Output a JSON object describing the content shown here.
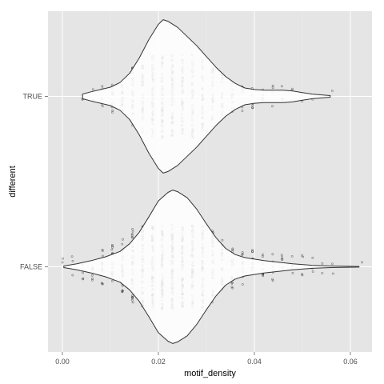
{
  "chart_data": {
    "type": "violin",
    "orientation": "horizontal",
    "title": "",
    "xlabel": "motif_density",
    "ylabel": "different",
    "xlim": [
      -0.003,
      0.0645
    ],
    "x_ticks": [
      0.0,
      0.02,
      0.04,
      0.06
    ],
    "x_tick_labels": [
      "0.00",
      "0.02",
      "0.04",
      "0.06"
    ],
    "categories": [
      "TRUE",
      "FALSE"
    ],
    "grid": true,
    "colors": {
      "panel_background": "#E5E5E5",
      "grid_major": "#FFFFFF",
      "grid_minor": "#F2F2F2",
      "violin_fill": "#FFFFFF",
      "violin_outline": "#333333",
      "points": "#000000"
    },
    "violins": [
      {
        "category": "TRUE",
        "range": [
          0.0042,
          0.0558
        ],
        "profile": [
          [
            0.0042,
            0.03
          ],
          [
            0.006,
            0.06
          ],
          [
            0.008,
            0.09
          ],
          [
            0.01,
            0.12
          ],
          [
            0.012,
            0.18
          ],
          [
            0.014,
            0.3
          ],
          [
            0.016,
            0.5
          ],
          [
            0.018,
            0.74
          ],
          [
            0.02,
            0.94
          ],
          [
            0.021,
            1.0
          ],
          [
            0.022,
            0.98
          ],
          [
            0.024,
            0.9
          ],
          [
            0.026,
            0.78
          ],
          [
            0.028,
            0.66
          ],
          [
            0.03,
            0.52
          ],
          [
            0.032,
            0.38
          ],
          [
            0.034,
            0.26
          ],
          [
            0.036,
            0.17
          ],
          [
            0.038,
            0.11
          ],
          [
            0.04,
            0.09
          ],
          [
            0.042,
            0.08
          ],
          [
            0.044,
            0.08
          ],
          [
            0.046,
            0.08
          ],
          [
            0.048,
            0.07
          ],
          [
            0.05,
            0.05
          ],
          [
            0.052,
            0.03
          ],
          [
            0.054,
            0.02
          ],
          [
            0.0558,
            0.01
          ]
        ]
      },
      {
        "category": "FALSE",
        "range": [
          0.0003,
          0.0618
        ],
        "profile": [
          [
            0.0003,
            0.01
          ],
          [
            0.003,
            0.04
          ],
          [
            0.006,
            0.08
          ],
          [
            0.009,
            0.13
          ],
          [
            0.012,
            0.2
          ],
          [
            0.014,
            0.3
          ],
          [
            0.016,
            0.45
          ],
          [
            0.018,
            0.65
          ],
          [
            0.02,
            0.86
          ],
          [
            0.022,
            0.97
          ],
          [
            0.023,
            1.0
          ],
          [
            0.024,
            0.98
          ],
          [
            0.026,
            0.9
          ],
          [
            0.028,
            0.75
          ],
          [
            0.03,
            0.56
          ],
          [
            0.032,
            0.38
          ],
          [
            0.034,
            0.24
          ],
          [
            0.036,
            0.16
          ],
          [
            0.038,
            0.12
          ],
          [
            0.04,
            0.1
          ],
          [
            0.042,
            0.08
          ],
          [
            0.045,
            0.06
          ],
          [
            0.048,
            0.04
          ],
          [
            0.052,
            0.02
          ],
          [
            0.056,
            0.01
          ],
          [
            0.0618,
            0.004
          ]
        ]
      }
    ],
    "points": [
      {
        "category": "TRUE",
        "x_columns": [
          0.0042,
          0.0063,
          0.0083,
          0.0104,
          0.0125,
          0.0146,
          0.0167,
          0.0188,
          0.0208,
          0.0229,
          0.025,
          0.0271,
          0.0292,
          0.0313,
          0.0333,
          0.0354,
          0.0375,
          0.0396,
          0.0417,
          0.0438,
          0.0458,
          0.0479,
          0.05,
          0.0521,
          0.0563
        ],
        "counts": [
          2,
          3,
          6,
          10,
          16,
          24,
          34,
          44,
          50,
          52,
          48,
          40,
          32,
          24,
          16,
          10,
          8,
          6,
          5,
          4,
          3,
          2,
          2,
          1,
          1
        ]
      },
      {
        "category": "FALSE",
        "x_columns": [
          0.0,
          0.0021,
          0.0042,
          0.0063,
          0.0083,
          0.0104,
          0.0125,
          0.0146,
          0.0167,
          0.0188,
          0.0208,
          0.0229,
          0.025,
          0.0271,
          0.0292,
          0.0313,
          0.0333,
          0.0354,
          0.0375,
          0.0396,
          0.0417,
          0.0438,
          0.0458,
          0.0479,
          0.05,
          0.0521,
          0.0542,
          0.0563,
          0.0625
        ],
        "counts": [
          2,
          3,
          5,
          8,
          12,
          16,
          24,
          34,
          48,
          60,
          66,
          68,
          64,
          56,
          46,
          32,
          22,
          16,
          12,
          10,
          8,
          7,
          6,
          5,
          4,
          3,
          2,
          2,
          1
        ]
      }
    ]
  }
}
